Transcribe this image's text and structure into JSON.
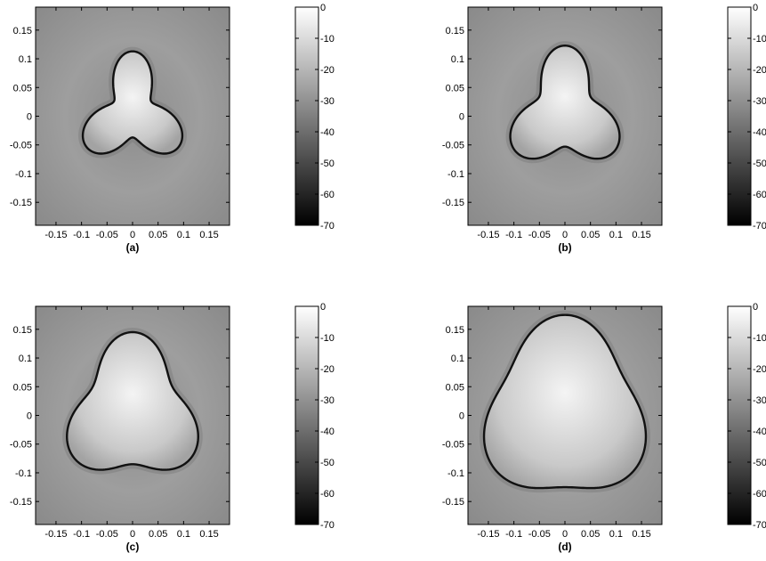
{
  "chart_data": [
    {
      "type": "heatmap",
      "caption": "(a)",
      "xlim": [
        -0.19,
        0.19
      ],
      "ylim": [
        -0.19,
        0.19
      ],
      "x_ticks": [
        -0.15,
        -0.1,
        -0.05,
        0,
        0.05,
        0.1,
        0.15
      ],
      "y_ticks": [
        0.15,
        0.1,
        0.05,
        0,
        -0.05,
        -0.1,
        -0.15
      ],
      "x_tick_labels": [
        "-0.15",
        "-0.1",
        "-0.05",
        "0",
        "0.05",
        "0.1",
        "0.15"
      ],
      "y_tick_labels": [
        "0.15",
        "0.1",
        "0.05",
        "0",
        "-0.05",
        "-0.1",
        "-0.15"
      ],
      "colorbar": {
        "min": -70,
        "max": 0,
        "ticks": [
          0,
          -10,
          -20,
          -30,
          -40,
          -50,
          -60,
          -70
        ],
        "tick_labels": [
          "0",
          "-10",
          "-20",
          "-30",
          "-40",
          "-50",
          "-60",
          "-70"
        ],
        "colormap": "gray"
      },
      "shape": {
        "form": "trefoil",
        "mean_radius": 0.075,
        "lobe_amplitude": 0.033,
        "lobes": 3
      }
    },
    {
      "type": "heatmap",
      "caption": "(b)",
      "xlim": [
        -0.19,
        0.19
      ],
      "ylim": [
        -0.19,
        0.19
      ],
      "x_ticks": [
        -0.15,
        -0.1,
        -0.05,
        0,
        0.05,
        0.1,
        0.15
      ],
      "y_ticks": [
        0.15,
        0.1,
        0.05,
        0,
        -0.05,
        -0.1,
        -0.15
      ],
      "x_tick_labels": [
        "-0.15",
        "-0.1",
        "-0.05",
        "0",
        "0.05",
        "0.1",
        "0.15"
      ],
      "y_tick_labels": [
        "0.15",
        "0.1",
        "0.05",
        "0",
        "-0.05",
        "-0.1",
        "-0.15"
      ],
      "colorbar": {
        "min": -70,
        "max": 0,
        "ticks": [
          0,
          -10,
          -20,
          -30,
          -40,
          -50,
          -60,
          -70
        ],
        "tick_labels": [
          "0",
          "-10",
          "-20",
          "-30",
          "-40",
          "-50",
          "-60",
          "-70"
        ],
        "colormap": "gray"
      },
      "shape": {
        "form": "trefoil",
        "mean_radius": 0.088,
        "lobe_amplitude": 0.03,
        "lobes": 3
      }
    },
    {
      "type": "heatmap",
      "caption": "(c)",
      "xlim": [
        -0.19,
        0.19
      ],
      "ylim": [
        -0.19,
        0.19
      ],
      "x_ticks": [
        -0.15,
        -0.1,
        -0.05,
        0,
        0.05,
        0.1,
        0.15
      ],
      "y_ticks": [
        0.15,
        0.1,
        0.05,
        0,
        -0.05,
        -0.1,
        -0.15
      ],
      "x_tick_labels": [
        "-0.15",
        "-0.1",
        "-0.05",
        "0",
        "0.05",
        "0.1",
        "0.15"
      ],
      "y_tick_labels": [
        "0.15",
        "0.1",
        "0.05",
        "0",
        "-0.05",
        "-0.1",
        "-0.15"
      ],
      "colorbar": {
        "min": -70,
        "max": 0,
        "ticks": [
          0,
          -10,
          -20,
          -30,
          -40,
          -50,
          -60,
          -70
        ],
        "tick_labels": [
          "0",
          "-10",
          "-20",
          "-30",
          "-40",
          "-50",
          "-60",
          "-70"
        ],
        "colormap": "gray"
      },
      "shape": {
        "form": "trefoil",
        "mean_radius": 0.115,
        "lobe_amplitude": 0.025,
        "lobes": 3
      }
    },
    {
      "type": "heatmap",
      "caption": "(d)",
      "xlim": [
        -0.19,
        0.19
      ],
      "ylim": [
        -0.19,
        0.19
      ],
      "x_ticks": [
        -0.15,
        -0.1,
        -0.05,
        0,
        0.05,
        0.1,
        0.15
      ],
      "y_ticks": [
        0.15,
        0.1,
        0.05,
        0,
        -0.05,
        -0.1,
        -0.15
      ],
      "x_tick_labels": [
        "-0.15",
        "-0.1",
        "-0.05",
        "0",
        "0.05",
        "0.1",
        "0.15"
      ],
      "y_tick_labels": [
        "0.15",
        "0.1",
        "0.05",
        "0",
        "-0.05",
        "-0.1",
        "-0.15"
      ],
      "colorbar": {
        "min": -70,
        "max": 0,
        "ticks": [
          0,
          -10,
          -20,
          -30,
          -40,
          -50,
          -60,
          -70
        ],
        "tick_labels": [
          "0",
          "-10",
          "-20",
          "-30",
          "-40",
          "-50",
          "-60",
          "-70"
        ],
        "colormap": "gray"
      },
      "shape": {
        "form": "trefoil",
        "mean_radius": 0.15,
        "lobe_amplitude": 0.02,
        "lobes": 3
      }
    }
  ]
}
